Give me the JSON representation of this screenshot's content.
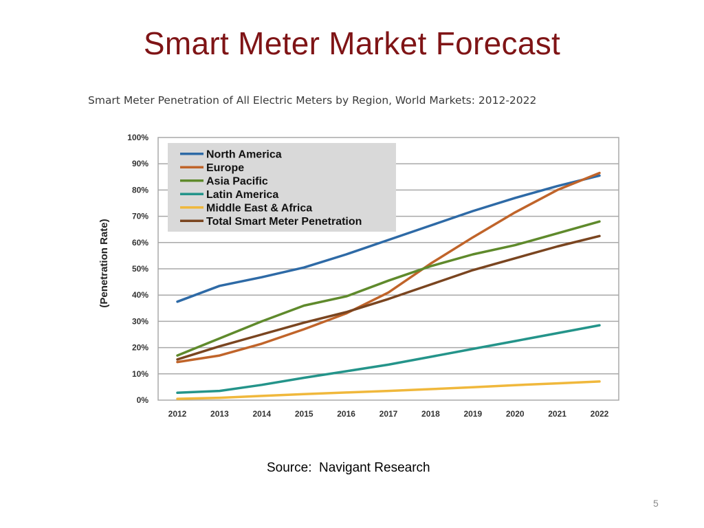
{
  "slide": {
    "title": "Smart Meter Market Forecast",
    "source": "Source:  Navigant Research",
    "page_number": "5"
  },
  "colors": {
    "title": "#7f1416",
    "grid": "#a8a8a8",
    "legend_bg": "#d9d9d9"
  },
  "chart_data": {
    "type": "line",
    "title": "Smart Meter Penetration of All Electric Meters by Region, World Markets: 2012-2022",
    "xlabel": "",
    "ylabel": "(Penetration Rate)",
    "ylim": [
      0,
      100
    ],
    "y_ticks": [
      "0%",
      "10%",
      "20%",
      "30%",
      "40%",
      "50%",
      "60%",
      "70%",
      "80%",
      "90%",
      "100%"
    ],
    "grid": true,
    "legend_position": "top-left",
    "x": [
      "2012",
      "2013",
      "2014",
      "2015",
      "2016",
      "2017",
      "2018",
      "2019",
      "2020",
      "2021",
      "2022"
    ],
    "series": [
      {
        "name": "North America",
        "color": "#2e6aa6",
        "values": [
          37.5,
          43.5,
          46.8,
          50.5,
          55.5,
          61,
          66.5,
          72,
          77,
          81.5,
          85.5
        ]
      },
      {
        "name": "Europe",
        "color": "#c0642a",
        "values": [
          14.5,
          17,
          21.5,
          27,
          33,
          41,
          52,
          62,
          71.5,
          80,
          86.5
        ]
      },
      {
        "name": "Asia Pacific",
        "color": "#5f8a2c",
        "values": [
          17,
          23.5,
          30,
          36,
          39.5,
          45.5,
          51,
          55.5,
          59,
          63.5,
          68
        ]
      },
      {
        "name": "Latin America",
        "color": "#24948a",
        "values": [
          2.8,
          3.5,
          5.8,
          8.5,
          11,
          13.5,
          16.5,
          19.5,
          22.5,
          25.5,
          28.5
        ]
      },
      {
        "name": "Middle East & Africa",
        "color": "#f0b83c",
        "values": [
          0.5,
          0.9,
          1.6,
          2.3,
          2.9,
          3.5,
          4.2,
          4.9,
          5.7,
          6.4,
          7.1
        ]
      },
      {
        "name": "Total Smart Meter Penetration",
        "color": "#7a4520",
        "values": [
          15.5,
          20.5,
          25,
          29.5,
          33.5,
          38.5,
          44,
          49.5,
          54,
          58.5,
          62.5
        ]
      }
    ]
  }
}
